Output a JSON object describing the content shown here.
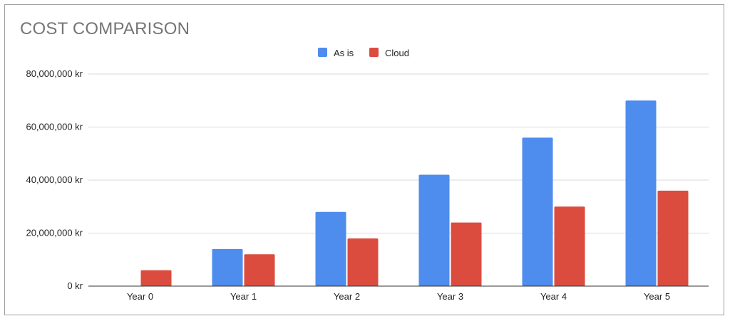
{
  "chart_data": {
    "type": "bar",
    "title": "COST COMPARISON",
    "categories": [
      "Year 0",
      "Year 1",
      "Year 2",
      "Year 3",
      "Year 4",
      "Year 5"
    ],
    "series": [
      {
        "name": "As is",
        "color": "#4e8ced",
        "values": [
          0,
          14000000,
          28000000,
          42000000,
          56000000,
          70000000
        ]
      },
      {
        "name": "Cloud",
        "color": "#db4c3f",
        "values": [
          6000000,
          12000000,
          18000000,
          24000000,
          30000000,
          36000000
        ]
      }
    ],
    "ylim": [
      0,
      80000000
    ],
    "yticks": [
      0,
      20000000,
      40000000,
      60000000,
      80000000
    ],
    "ytick_labels": [
      "0 kr",
      "20,000,000 kr",
      "40,000,000 kr",
      "60,000,000 kr",
      "80,000,000 kr"
    ],
    "grid": true,
    "legend_position": "top-center"
  }
}
